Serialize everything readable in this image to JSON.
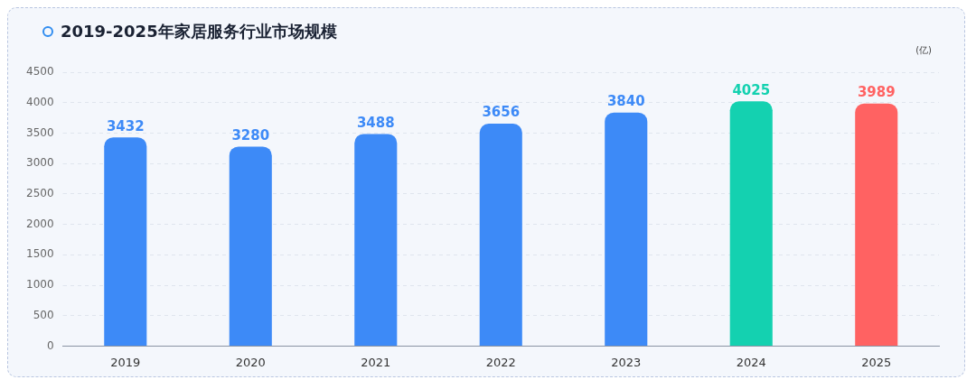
{
  "chart_data": {
    "type": "bar",
    "title": "2019-2025年家居服务行业市场规模",
    "ylabel": "(亿)",
    "categories": [
      "2019",
      "2020",
      "2021",
      "2022",
      "2023",
      "2024",
      "2025"
    ],
    "values": [
      3432,
      3280,
      3488,
      3656,
      3840,
      4025,
      3989
    ],
    "colors": [
      "#3d8af7",
      "#3d8af7",
      "#3d8af7",
      "#3d8af7",
      "#3d8af7",
      "#14d1b0",
      "#ff6262"
    ],
    "ylim": [
      0,
      4500
    ],
    "yticks": [
      0,
      500,
      1000,
      1500,
      2000,
      2500,
      3000,
      3500,
      4000,
      4500
    ],
    "grid": "y",
    "data_labels": true,
    "legend": false
  }
}
